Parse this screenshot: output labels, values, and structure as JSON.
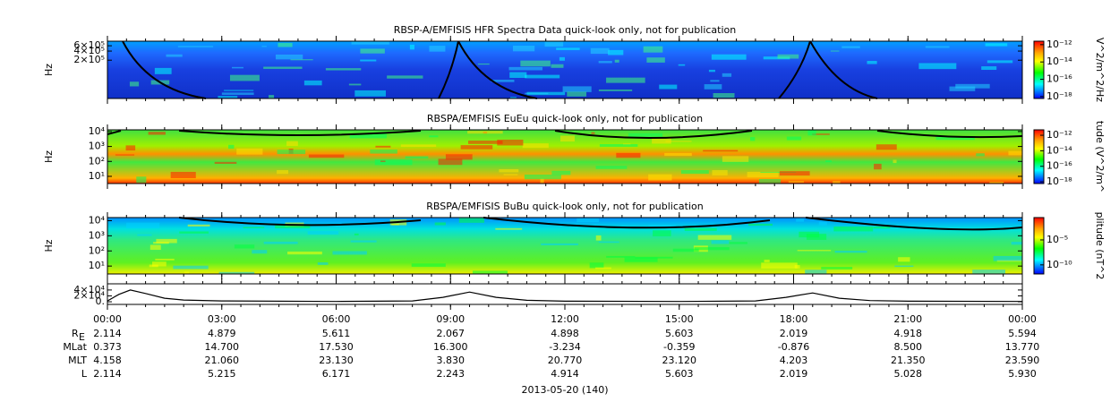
{
  "chart_data": [
    {
      "type": "spectrogram",
      "title": "RBSP-A/EMFISIS  HFR Spectra Data quick-look only, not for publication",
      "ylabel": "Hz",
      "log": true,
      "ylim": [
        10800,
        850000
      ],
      "yticks": [
        {
          "value": 200000,
          "label": "2×10⁵"
        },
        {
          "value": 400000,
          "label": "4×10⁵"
        },
        {
          "value": 600000,
          "label": "6×10⁵"
        }
      ],
      "colorbar_label": "V^2/m^2/Hz",
      "clim": [
        6e-19,
        2.5e-12
      ],
      "cticks": [
        {
          "value": 1e-12,
          "label": "10⁻¹²"
        },
        {
          "value": 1e-14,
          "label": "10⁻¹⁴"
        },
        {
          "value": 1e-16,
          "label": "10⁻¹⁶"
        },
        {
          "value": 1e-18,
          "label": "10⁻¹⁸"
        }
      ]
    },
    {
      "type": "spectrogram",
      "title": "RBSPA/EMFISIS  EuEu quick-look only, not for publication",
      "ylabel": "Hz",
      "log": true,
      "ylim": [
        3.3,
        13000
      ],
      "yticks": [
        {
          "value": 10,
          "label": "10¹"
        },
        {
          "value": 100,
          "label": "10²"
        },
        {
          "value": 1000,
          "label": "10³"
        },
        {
          "value": 10000,
          "label": "10⁴"
        }
      ],
      "colorbar_label": "tude (V^2/m^",
      "clim": [
        6e-19,
        5e-12
      ],
      "cticks": [
        {
          "value": 1e-12,
          "label": "10⁻¹²"
        },
        {
          "value": 1e-14,
          "label": "10⁻¹⁴"
        },
        {
          "value": 1e-16,
          "label": "10⁻¹⁶"
        },
        {
          "value": 1e-18,
          "label": "10⁻¹⁸"
        }
      ]
    },
    {
      "type": "spectrogram",
      "title": "RBSPA/EMFISIS  BuBu quick-look only, not for publication",
      "ylabel": "Hz",
      "log": true,
      "ylim": [
        3,
        16000
      ],
      "yticks": [
        {
          "value": 10,
          "label": "10¹"
        },
        {
          "value": 100,
          "label": "10²"
        },
        {
          "value": 1000,
          "label": "10³"
        },
        {
          "value": 10000,
          "label": "10⁴"
        }
      ],
      "colorbar_label": "plitude (nT^2",
      "clim": [
        1.5e-12,
        0.3
      ],
      "cticks": [
        {
          "value": 1e-05,
          "label": "10⁻⁵"
        },
        {
          "value": 1e-10,
          "label": "10⁻¹⁰"
        }
      ]
    },
    {
      "type": "line",
      "color": "#000000",
      "ylim": [
        -9000,
        61000
      ],
      "yticks": [
        {
          "value": 0,
          "label": "0."
        },
        {
          "value": 20000,
          "label": "2×10⁴"
        },
        {
          "value": 40000,
          "label": "4×10⁴"
        }
      ],
      "x": [
        0,
        0.3,
        0.6,
        1.0,
        1.5,
        2,
        3,
        6,
        8,
        8.8,
        9.5,
        10.2,
        11,
        12,
        15,
        17,
        17.8,
        18.5,
        19.2,
        20,
        21,
        24
      ],
      "values": [
        3000,
        25000,
        40000,
        28000,
        12000,
        6000,
        3000,
        1000,
        3000,
        15000,
        33000,
        15000,
        5000,
        2000,
        1000,
        3000,
        15000,
        30000,
        12000,
        4000,
        2000,
        1000
      ]
    }
  ],
  "time_axis": {
    "xlim": [
      0,
      24
    ],
    "xticks": [
      {
        "value": 0,
        "label": "00:00"
      },
      {
        "value": 3,
        "label": "03:00"
      },
      {
        "value": 6,
        "label": "06:00"
      },
      {
        "value": 9,
        "label": "09:00"
      },
      {
        "value": 12,
        "label": "12:00"
      },
      {
        "value": 15,
        "label": "15:00"
      },
      {
        "value": 18,
        "label": "18:00"
      },
      {
        "value": 21,
        "label": "21:00"
      },
      {
        "value": 24,
        "label": "00:00"
      }
    ],
    "date": "2013-05-20 (140)"
  },
  "ephemeris": [
    {
      "label": "R",
      "subscript": "E",
      "values": [
        "2.114",
        "4.879",
        "5.611",
        "2.067",
        "4.898",
        "5.603",
        "2.019",
        "4.918",
        "5.594"
      ]
    },
    {
      "label": "MLat",
      "values": [
        "0.373",
        "14.700",
        "17.530",
        "16.300",
        "-3.234",
        "-0.359",
        "-0.876",
        "8.500",
        "13.770"
      ]
    },
    {
      "label": "MLT",
      "values": [
        "4.158",
        "21.060",
        "23.130",
        "3.830",
        "20.770",
        "23.120",
        "4.203",
        "21.350",
        "23.590"
      ]
    },
    {
      "label": "L",
      "values": [
        "2.114",
        "5.215",
        "6.171",
        "2.243",
        "4.914",
        "5.603",
        "2.019",
        "5.028",
        "5.930"
      ]
    }
  ]
}
